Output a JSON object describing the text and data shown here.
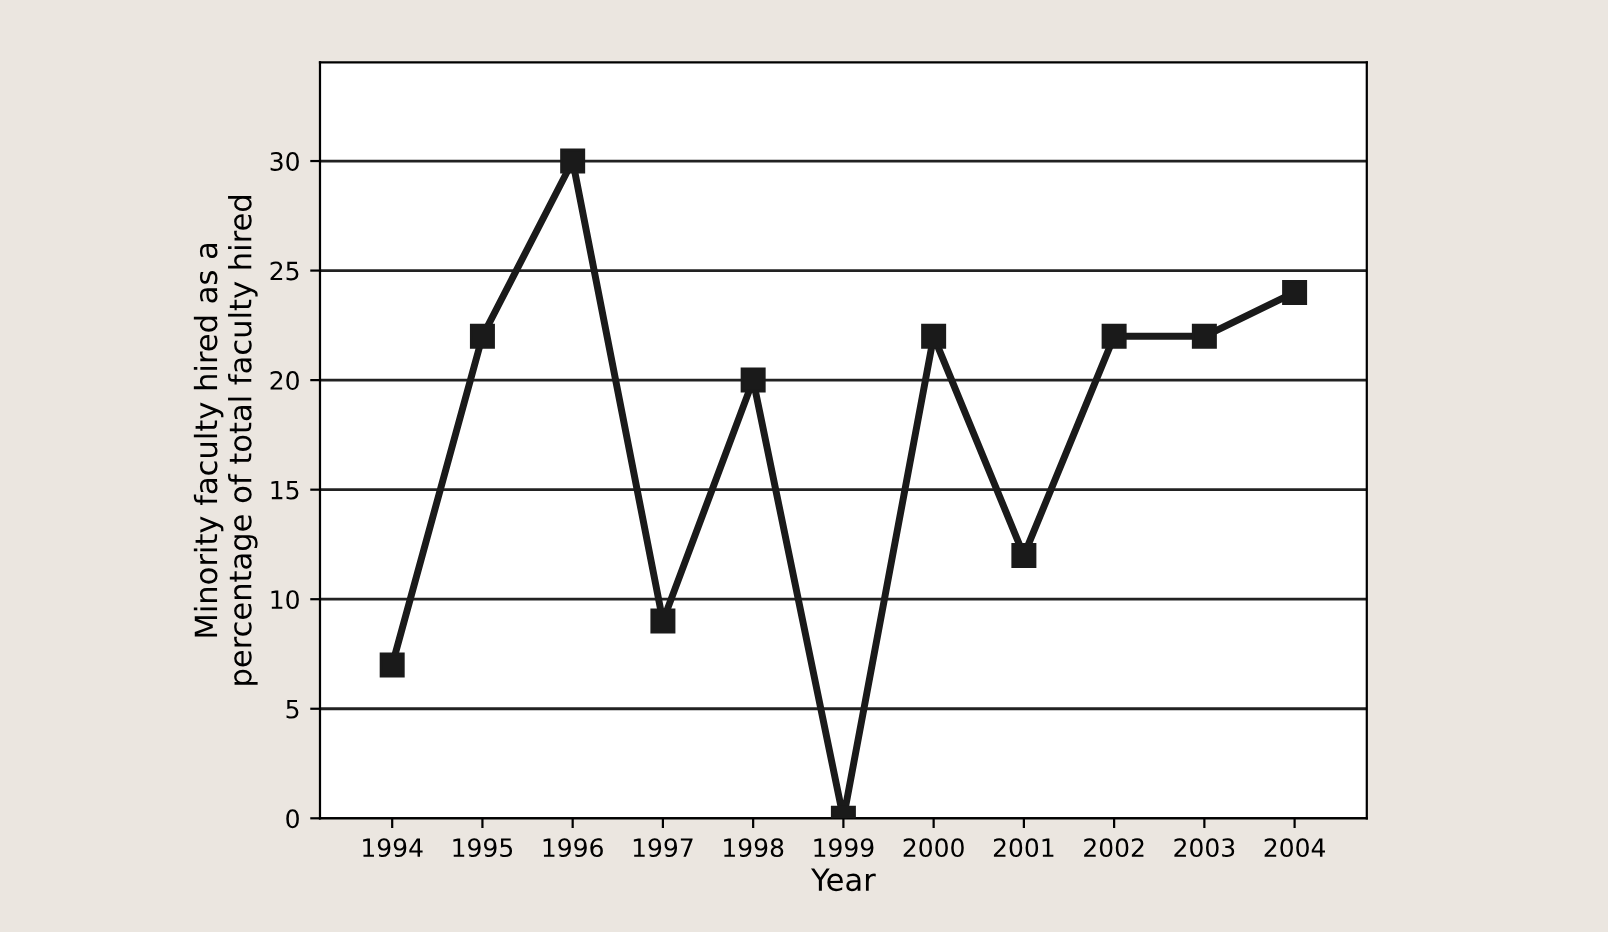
{
  "chart_data": {
    "type": "line",
    "xlabel": "Year",
    "ylabel": "Minority faculty hired as a\npercentage of total faculty hired",
    "categories": [
      "1994",
      "1995",
      "1996",
      "1997",
      "1998",
      "1999",
      "2000",
      "2001",
      "2002",
      "2003",
      "2004"
    ],
    "series": [
      {
        "color": "#1a1a1a",
        "values": [
          7,
          22,
          30,
          9,
          20,
          0,
          22,
          12,
          22,
          22,
          24
        ]
      }
    ],
    "ylim": [
      0,
      34.5
    ],
    "yticks": [
      0,
      5,
      10,
      15,
      20,
      25,
      30
    ],
    "grid": "y",
    "marker": "square",
    "line_style": "solid"
  }
}
